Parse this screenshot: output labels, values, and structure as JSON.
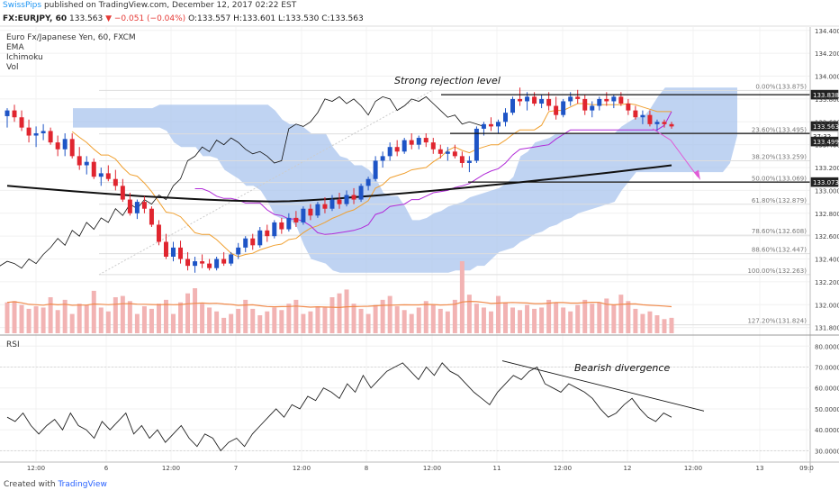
{
  "header": {
    "user": "SwissPips",
    "published_text": "published on TradingView.com, December 12, 2017 02:22 EST"
  },
  "quote": {
    "symbol": "FX:EURJPY, 60",
    "last": "133.563",
    "change": "▼ −0.051 (−0.04%)",
    "open": "O:133.557",
    "high": "H:133.601",
    "low": "L:133.530",
    "close": "C:133.563"
  },
  "legend": {
    "instrument": "Euro Fx/Japanese Yen, 60, FXCM",
    "indicators": [
      "EMA",
      "Ichimoku",
      "Vol"
    ]
  },
  "rsi_label": "RSI",
  "footer": {
    "created_with": "Created with",
    "brand": "TradingView"
  },
  "colors": {
    "bull": "#1e54c6",
    "bear": "#e0252f",
    "cloud": "#a9c4ee",
    "kijun": "#b12ad8",
    "tenkan": "#f0a030",
    "ema": "#111111",
    "volume_bull": "#f2b3b3",
    "volume_bear": "#f2b3b3",
    "rsi_line": "#222222"
  },
  "chart_data": [
    {
      "type": "candlestick",
      "title": "Euro Fx/Japanese Yen, 60, FXCM",
      "y_axis_ticks": [
        "134.400",
        "134.200",
        "134.000",
        "133.800",
        "133.600",
        "133.400",
        "133.200",
        "133.000",
        "132.800",
        "132.600",
        "132.400",
        "132.200",
        "132.000",
        "131.800"
      ],
      "ylim": [
        131.75,
        134.43
      ],
      "x_axis_ticks": [
        "12:00",
        "6",
        "12:00",
        "7",
        "12:00",
        "8",
        "12:00",
        "11",
        "12:00",
        "12",
        "12:00",
        "13",
        "09:0"
      ],
      "price_labels": [
        {
          "value": "133.838",
          "style": "dark"
        },
        {
          "value": "133.563",
          "style": "dark"
        },
        {
          "value": "37:32",
          "style": "light"
        },
        {
          "value": "133.499",
          "style": "dark"
        },
        {
          "value": "133.073",
          "style": "dark"
        }
      ],
      "fibonacci": [
        {
          "label": "0.00%(133.875)",
          "value": 133.875
        },
        {
          "label": "23.60%(133.495)",
          "value": 133.495
        },
        {
          "label": "38.20%(133.259)",
          "value": 133.259
        },
        {
          "label": "50.00%(133.069)",
          "value": 133.069
        },
        {
          "label": "61.80%(132.879)",
          "value": 132.879
        },
        {
          "label": "78.60%(132.608)",
          "value": 132.608
        },
        {
          "label": "88.60%(132.447)",
          "value": 132.447
        },
        {
          "label": "100.00%(132.263)",
          "value": 132.263
        },
        {
          "label": "127.20%(131.824)",
          "value": 131.824
        }
      ],
      "levels": [
        {
          "name": "strong-rejection",
          "value": 133.838
        },
        {
          "name": "support-23.6",
          "value": 133.499
        },
        {
          "name": "support-50",
          "value": 133.073
        }
      ],
      "annotations": [
        "Strong rejection level"
      ],
      "candles": [
        [
          133.65,
          133.72,
          133.55,
          133.7
        ],
        [
          133.7,
          133.75,
          133.6,
          133.64
        ],
        [
          133.64,
          133.7,
          133.52,
          133.55
        ],
        [
          133.55,
          133.62,
          133.42,
          133.48
        ],
        [
          133.48,
          133.56,
          133.38,
          133.5
        ],
        [
          133.5,
          133.58,
          133.44,
          133.52
        ],
        [
          133.52,
          133.55,
          133.4,
          133.42
        ],
        [
          133.42,
          133.48,
          133.3,
          133.36
        ],
        [
          133.36,
          133.5,
          133.3,
          133.45
        ],
        [
          133.45,
          133.5,
          133.28,
          133.3
        ],
        [
          133.3,
          133.38,
          133.18,
          133.22
        ],
        [
          133.22,
          133.3,
          133.14,
          133.25
        ],
        [
          133.25,
          133.28,
          133.1,
          133.12
        ],
        [
          133.12,
          133.2,
          133.04,
          133.15
        ],
        [
          133.15,
          133.22,
          133.08,
          133.1
        ],
        [
          133.1,
          133.18,
          133.0,
          133.04
        ],
        [
          133.04,
          133.1,
          132.9,
          132.92
        ],
        [
          132.92,
          132.98,
          132.78,
          132.8
        ],
        [
          132.8,
          132.92,
          132.75,
          132.9
        ],
        [
          132.9,
          132.95,
          132.8,
          132.84
        ],
        [
          132.84,
          132.86,
          132.68,
          132.7
        ],
        [
          132.7,
          132.74,
          132.52,
          132.55
        ],
        [
          132.55,
          132.62,
          132.4,
          132.42
        ],
        [
          132.42,
          132.55,
          132.38,
          132.5
        ],
        [
          132.5,
          132.56,
          132.36,
          132.4
        ],
        [
          132.4,
          132.46,
          132.3,
          132.34
        ],
        [
          132.34,
          132.42,
          132.28,
          132.38
        ],
        [
          132.38,
          132.44,
          132.32,
          132.36
        ],
        [
          132.36,
          132.4,
          132.3,
          132.32
        ],
        [
          132.32,
          132.42,
          132.3,
          132.4
        ],
        [
          132.4,
          132.46,
          132.34,
          132.36
        ],
        [
          132.36,
          132.46,
          132.34,
          132.44
        ],
        [
          132.44,
          132.54,
          132.4,
          132.5
        ],
        [
          132.5,
          132.6,
          132.46,
          132.58
        ],
        [
          132.58,
          132.62,
          132.48,
          132.52
        ],
        [
          132.52,
          132.68,
          132.5,
          132.65
        ],
        [
          132.65,
          132.7,
          132.55,
          132.6
        ],
        [
          132.6,
          132.74,
          132.58,
          132.72
        ],
        [
          132.72,
          132.76,
          132.62,
          132.66
        ],
        [
          132.66,
          132.8,
          132.64,
          132.76
        ],
        [
          132.76,
          132.82,
          132.68,
          132.72
        ],
        [
          132.72,
          132.86,
          132.7,
          132.84
        ],
        [
          132.84,
          132.88,
          132.74,
          132.78
        ],
        [
          132.78,
          132.9,
          132.76,
          132.88
        ],
        [
          132.88,
          132.94,
          132.8,
          132.84
        ],
        [
          132.84,
          132.96,
          132.82,
          132.92
        ],
        [
          132.92,
          132.98,
          132.84,
          132.88
        ],
        [
          132.88,
          133.0,
          132.86,
          132.96
        ],
        [
          132.96,
          133.02,
          132.88,
          132.92
        ],
        [
          132.92,
          133.06,
          132.9,
          133.04
        ],
        [
          133.04,
          133.12,
          133.0,
          133.1
        ],
        [
          133.1,
          133.3,
          133.08,
          133.26
        ],
        [
          133.26,
          133.34,
          133.2,
          133.3
        ],
        [
          133.3,
          133.42,
          133.26,
          133.38
        ],
        [
          133.38,
          133.44,
          133.3,
          133.34
        ],
        [
          133.34,
          133.46,
          133.32,
          133.44
        ],
        [
          133.44,
          133.5,
          133.36,
          133.4
        ],
        [
          133.4,
          133.48,
          133.36,
          133.46
        ],
        [
          133.46,
          133.5,
          133.38,
          133.42
        ],
        [
          133.42,
          133.46,
          133.32,
          133.36
        ],
        [
          133.36,
          133.4,
          133.28,
          133.32
        ],
        [
          133.32,
          133.38,
          133.26,
          133.34
        ],
        [
          133.34,
          133.4,
          133.28,
          133.3
        ],
        [
          133.3,
          133.34,
          133.2,
          133.24
        ],
        [
          133.24,
          133.3,
          133.16,
          133.26
        ],
        [
          133.26,
          133.56,
          133.24,
          133.54
        ],
        [
          133.54,
          133.6,
          133.48,
          133.58
        ],
        [
          133.58,
          133.64,
          133.52,
          133.56
        ],
        [
          133.56,
          133.62,
          133.5,
          133.6
        ],
        [
          133.6,
          133.72,
          133.56,
          133.68
        ],
        [
          133.68,
          133.82,
          133.66,
          133.8
        ],
        [
          133.8,
          133.9,
          133.74,
          133.78
        ],
        [
          133.78,
          133.86,
          133.7,
          133.82
        ],
        [
          133.82,
          133.86,
          133.74,
          133.76
        ],
        [
          133.76,
          133.84,
          133.72,
          133.8
        ],
        [
          133.8,
          133.86,
          133.7,
          133.74
        ],
        [
          133.74,
          133.82,
          133.62,
          133.66
        ],
        [
          133.66,
          133.8,
          133.64,
          133.78
        ],
        [
          133.78,
          133.86,
          133.74,
          133.82
        ],
        [
          133.82,
          133.88,
          133.76,
          133.8
        ],
        [
          133.8,
          133.84,
          133.66,
          133.7
        ],
        [
          133.7,
          133.78,
          133.64,
          133.74
        ],
        [
          133.74,
          133.82,
          133.7,
          133.8
        ],
        [
          133.8,
          133.86,
          133.74,
          133.78
        ],
        [
          133.78,
          133.84,
          133.72,
          133.82
        ],
        [
          133.82,
          133.86,
          133.74,
          133.76
        ],
        [
          133.76,
          133.8,
          133.66,
          133.7
        ],
        [
          133.7,
          133.74,
          133.62,
          133.64
        ],
        [
          133.64,
          133.7,
          133.58,
          133.66
        ],
        [
          133.66,
          133.7,
          133.56,
          133.58
        ],
        [
          133.58,
          133.62,
          133.52,
          133.6
        ],
        [
          133.6,
          133.62,
          133.55,
          133.58
        ],
        [
          133.58,
          133.6,
          133.54,
          133.56
        ]
      ],
      "ema_200": {
        "start": 133.04,
        "min": 132.9,
        "end": 133.22
      },
      "volume": [
        48,
        50,
        44,
        38,
        42,
        40,
        56,
        36,
        52,
        30,
        46,
        44,
        66,
        40,
        34,
        56,
        58,
        50,
        30,
        42,
        38,
        46,
        52,
        30,
        48,
        62,
        70,
        46,
        40,
        34,
        24,
        30,
        38,
        52,
        38,
        28,
        34,
        40,
        36,
        46,
        52,
        30,
        34,
        42,
        40,
        56,
        62,
        68,
        46,
        38,
        30,
        44,
        52,
        58,
        42,
        36,
        30,
        40,
        50,
        44,
        38,
        34,
        52,
        112,
        60,
        46,
        40,
        34,
        58,
        48,
        40,
        36,
        44,
        38,
        40,
        52,
        48,
        40,
        34,
        44,
        52,
        46,
        48,
        54,
        44,
        60,
        50,
        38,
        30,
        34,
        28,
        22,
        24
      ],
      "volume_ma": true
    },
    {
      "type": "line",
      "title": "RSI",
      "y_axis_ticks": [
        "80.0000",
        "70.0000",
        "60.0000",
        "50.0000",
        "40.0000",
        "30.0000"
      ],
      "ylim": [
        25,
        84
      ],
      "values": [
        46,
        44,
        48,
        42,
        38,
        42,
        45,
        40,
        48,
        42,
        40,
        36,
        44,
        40,
        44,
        48,
        38,
        42,
        36,
        40,
        34,
        38,
        42,
        36,
        32,
        38,
        36,
        30,
        34,
        36,
        32,
        38,
        42,
        46,
        50,
        46,
        52,
        50,
        56,
        54,
        60,
        58,
        55,
        62,
        58,
        66,
        60,
        64,
        68,
        70,
        72,
        68,
        64,
        70,
        66,
        72,
        68,
        66,
        62,
        58,
        55,
        52,
        58,
        62,
        66,
        64,
        68,
        70,
        62,
        60,
        58,
        62,
        60,
        58,
        55,
        50,
        46,
        48,
        52,
        55,
        50,
        46,
        44,
        48,
        46
      ],
      "annotations": [
        "Bearish divergence"
      ]
    }
  ]
}
